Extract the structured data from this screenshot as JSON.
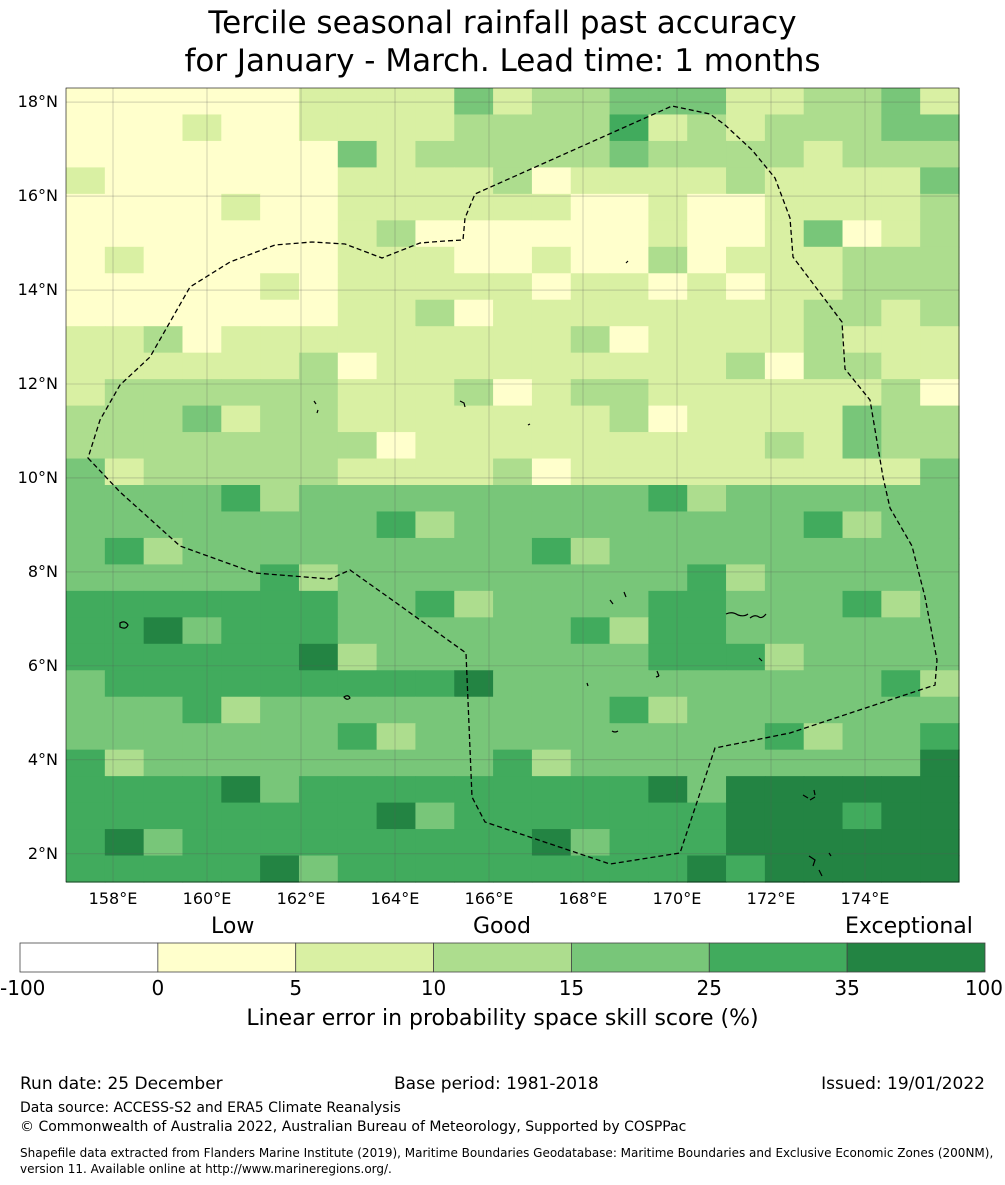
{
  "title_line1": "Tercile seasonal rainfall past accuracy",
  "title_line2": "for January - March. Lead time: 1 months",
  "map": {
    "lon_range": [
      157,
      176
    ],
    "lat_range": [
      1.4,
      18.3
    ],
    "lat_ticks": [
      "18°N",
      "16°N",
      "14°N",
      "12°N",
      "10°N",
      "8°N",
      "6°N",
      "4°N",
      "2°N"
    ],
    "lon_ticks": [
      "158°E",
      "160°E",
      "162°E",
      "164°E",
      "166°E",
      "168°E",
      "170°E",
      "172°E",
      "174°E"
    ],
    "boundary": "EEZ dashed outline"
  },
  "colorbar": {
    "categories": [
      "Low",
      "Good",
      "Exceptional"
    ],
    "ticks": [
      "-100",
      "0",
      "5",
      "10",
      "15",
      "25",
      "35",
      "100"
    ],
    "colors": [
      "#ffffff",
      "#ffffcc",
      "#d9f0a3",
      "#addd8e",
      "#78c679",
      "#41ab5d",
      "#238443"
    ],
    "label": "Linear error in probability space skill score (%)"
  },
  "footer": {
    "run_date": "Run date: 25 December",
    "base_period": "Base period: 1981-2018",
    "issued": "Issued: 19/01/2022",
    "data_source": "Data source: ACCESS-S2 and ERA5 Climate Reanalysis",
    "copyright": "© Commonwealth of Australia 2022, Australian Bureau of Meteorology, Supported by COSPPac",
    "shapefile_line1": "Shapefile data extracted from Flanders Marine Institute (2019), Maritime Boundaries Geodatabase: Maritime Boundaries and Exclusive Economic Zones (200NM),",
    "shapefile_line2": "version 11. Available online at http://www.marineregions.org/."
  }
}
